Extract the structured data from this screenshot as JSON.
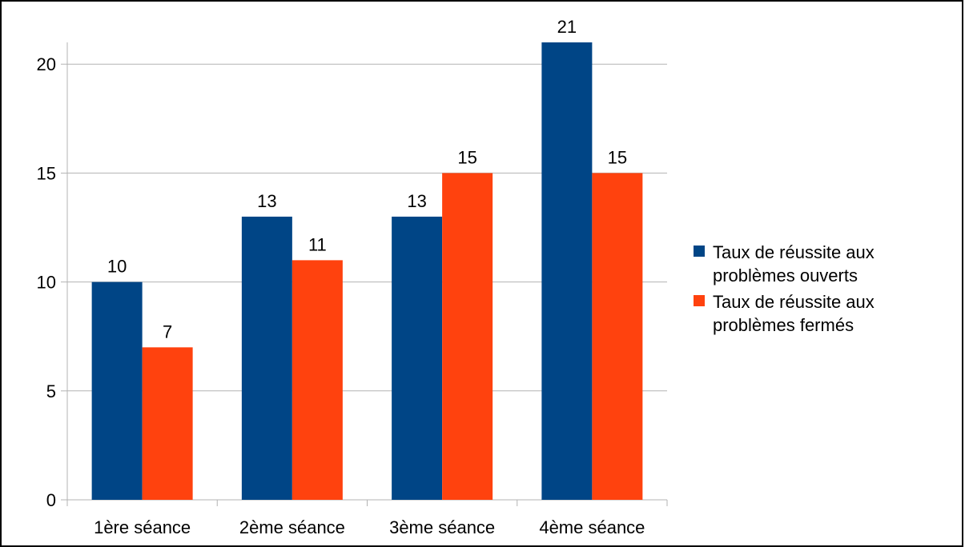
{
  "chart_data": {
    "type": "bar",
    "categories": [
      "1ère séance",
      "2ème séance",
      "3ème séance",
      "4ème séance"
    ],
    "series": [
      {
        "name": "Taux de réussite aux problèmes ouverts",
        "legend_lines": [
          "Taux de réussite aux",
          "problèmes ouverts"
        ],
        "values": [
          10,
          13,
          13,
          21
        ],
        "color": "#004586"
      },
      {
        "name": "Taux de réussite aux problèmes fermés",
        "legend_lines": [
          "Taux de réussite aux",
          "problèmes fermés"
        ],
        "values": [
          7,
          11,
          15,
          15
        ],
        "color": "#ff420e"
      }
    ],
    "title": "",
    "xlabel": "",
    "ylabel": "",
    "ylim": [
      0,
      21
    ],
    "yticks": [
      0,
      5,
      10,
      15,
      20
    ],
    "grid": true,
    "data_labels": true,
    "legend_position": "right"
  }
}
